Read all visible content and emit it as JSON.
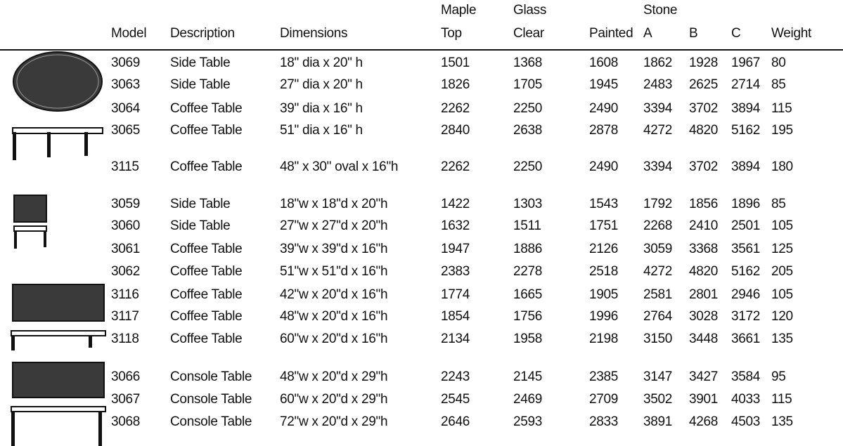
{
  "table": {
    "columns": [
      {
        "label": "Model"
      },
      {
        "label": "Description"
      },
      {
        "label": "Dimensions"
      },
      {
        "top": "Maple",
        "label": "Top"
      },
      {
        "top": "Glass",
        "label": "Clear"
      },
      {
        "label": "Painted"
      },
      {
        "top": "Stone",
        "label": "A"
      },
      {
        "label": "B"
      },
      {
        "label": "C"
      },
      {
        "label": "Weight"
      }
    ],
    "rows": [
      [
        3069,
        "Side Table",
        "18\" dia x 20\" h",
        1501,
        1368,
        1608,
        1862,
        1928,
        1967,
        80
      ],
      [
        3063,
        "Side Table",
        "27\" dia x 20\" h",
        1826,
        1705,
        1945,
        2483,
        2625,
        2714,
        85
      ],
      [
        3064,
        "Coffee Table",
        "39\" dia x 16\" h",
        2262,
        2250,
        2490,
        3394,
        3702,
        3894,
        115
      ],
      [
        3065,
        "Coffee Table",
        "51\" dia x 16\" h",
        2840,
        2638,
        2878,
        4272,
        4820,
        5162,
        195
      ],
      [
        3115,
        "Coffee Table",
        "48\" x 30\" oval x 16\"h",
        2262,
        2250,
        2490,
        3394,
        3702,
        3894,
        180
      ],
      [
        3059,
        "Side Table",
        "18\"w x 18\"d x 20\"h",
        1422,
        1303,
        1543,
        1792,
        1856,
        1896,
        85
      ],
      [
        3060,
        "Side Table",
        "27\"w x 27\"d x 20\"h",
        1632,
        1511,
        1751,
        2268,
        2410,
        2501,
        105
      ],
      [
        3061,
        "Coffee Table",
        "39\"w x 39\"d x 16\"h",
        1947,
        1886,
        2126,
        3059,
        3368,
        3561,
        125
      ],
      [
        3062,
        "Coffee Table",
        "51\"w x 51\"d x 16\"h",
        2383,
        2278,
        2518,
        4272,
        4820,
        5162,
        205
      ],
      [
        3116,
        "Coffee Table",
        "42\"w x 20\"d x 16\"h",
        1774,
        1665,
        1905,
        2581,
        2801,
        2946,
        105
      ],
      [
        3117,
        "Coffee Table",
        "48\"w x 20\"d x 16\"h",
        1854,
        1756,
        1996,
        2764,
        3028,
        3172,
        120
      ],
      [
        3118,
        "Coffee Table",
        "60\"w x 20\"d x 16\"h",
        2134,
        1958,
        2198,
        3150,
        3448,
        3661,
        135
      ],
      [
        3066,
        "Console Table",
        "48\"w x 20\"d x 29\"h",
        2243,
        2145,
        2385,
        3147,
        3427,
        3584,
        95
      ],
      [
        3067,
        "Console Table",
        "60\"w x 20\"d x 29\"h",
        2545,
        2469,
        2709,
        3502,
        3901,
        4033,
        115
      ],
      [
        3068,
        "Console Table",
        "72\"w x 20\"d x 29\"h",
        2646,
        2593,
        2833,
        3891,
        4268,
        4503,
        135
      ]
    ]
  }
}
